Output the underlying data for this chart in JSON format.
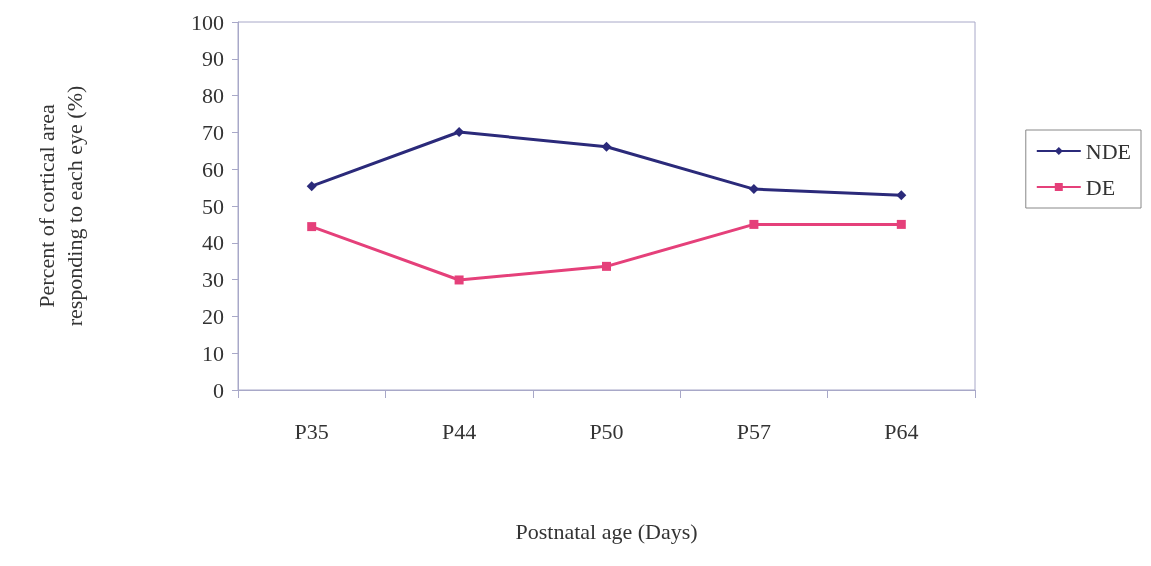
{
  "chart_data": {
    "type": "line",
    "xlabel": "Postnatal age (Days)",
    "ylabel": "Percent of cortical area\nresponding to each eye (%)",
    "categories": [
      "P35",
      "P44",
      "P50",
      "P57",
      "P64"
    ],
    "series": [
      {
        "name": "NDE",
        "color": "#2b2a7a",
        "values": [
          55.4,
          70.1,
          66.1,
          54.6,
          52.9
        ],
        "marker": "diamond"
      },
      {
        "name": "DE",
        "color": "#e5407a",
        "values": [
          44.4,
          29.9,
          33.6,
          45,
          45
        ],
        "marker": "square"
      }
    ],
    "ylim": [
      0,
      100
    ],
    "yticks": [
      0,
      10,
      20,
      30,
      40,
      50,
      60,
      70,
      80,
      90,
      100
    ],
    "grid": false,
    "legend": "right",
    "line_style": "solid"
  }
}
